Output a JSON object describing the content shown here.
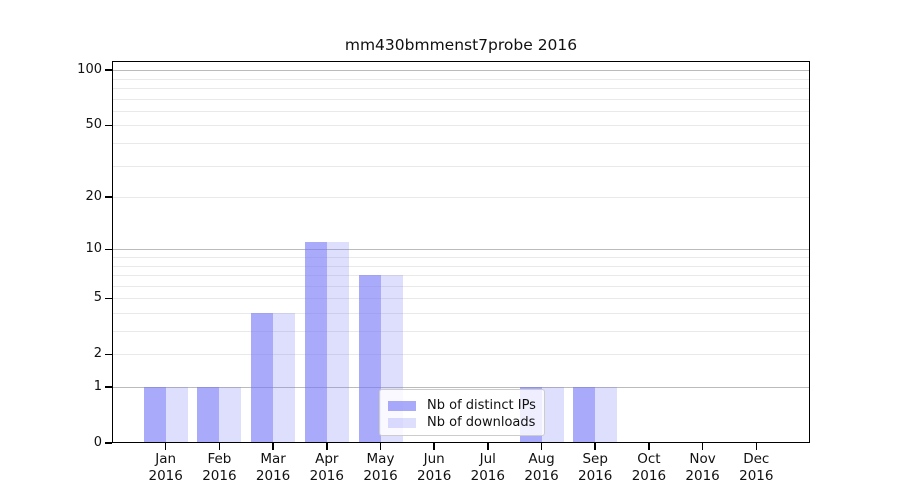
{
  "title": "mm430bmmenst7probe 2016",
  "legend": {
    "position": "lower center",
    "items": [
      {
        "label": "Nb of distinct IPs"
      },
      {
        "label": "Nb of downloads"
      }
    ]
  },
  "chart_data": {
    "type": "bar",
    "title": "mm430bmmenst7probe 2016",
    "categories": [
      "Jan",
      "Feb",
      "Mar",
      "Apr",
      "May",
      "Jun",
      "Jul",
      "Aug",
      "Sep",
      "Oct",
      "Nov",
      "Dec"
    ],
    "year_label": "2016",
    "series": [
      {
        "name": "Nb of distinct IPs",
        "color": "rgba(118,118,248,0.62)",
        "values": [
          1,
          1,
          4,
          11,
          7,
          0,
          0,
          1,
          1,
          0,
          0,
          0
        ]
      },
      {
        "name": "Nb of downloads",
        "color": "rgba(118,118,248,0.24)",
        "values": [
          1,
          1,
          4,
          11,
          7,
          0,
          0,
          1,
          1,
          0,
          0,
          0
        ]
      }
    ],
    "xlabel": "",
    "ylabel": "",
    "yscale": "log10(1+v)",
    "ylim": [
      0,
      112
    ],
    "yticks": [
      0,
      1,
      2,
      5,
      10,
      20,
      50,
      100
    ],
    "yticks_minor": [
      3,
      4,
      6,
      7,
      8,
      9,
      30,
      40,
      60,
      70,
      80,
      90
    ],
    "emphasized_gridlines": [
      1,
      10,
      100
    ],
    "grid": true,
    "legend_position": "lower center"
  },
  "colors": {
    "grid_minor": "#e9e9e9",
    "grid_major_emphasis": "#bbbbbb",
    "spine": "#000000",
    "text": "#111111"
  }
}
